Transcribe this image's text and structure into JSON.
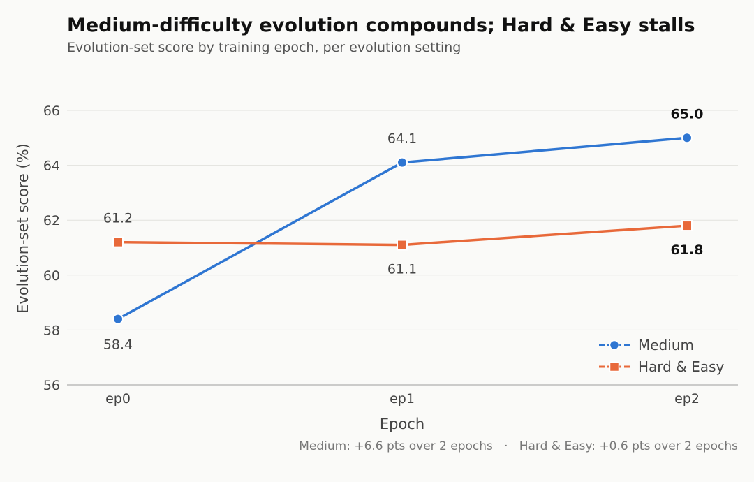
{
  "chart_data": {
    "type": "line",
    "title": "Medium-difficulty evolution compounds; Hard & Easy stalls",
    "subtitle": "Evolution-set score by training epoch, per evolution setting",
    "xlabel": "Epoch",
    "ylabel": "Evolution-set score (%)",
    "categories": [
      "ep0",
      "ep1",
      "ep2"
    ],
    "ylim": [
      56,
      66
    ],
    "yticks": [
      "56",
      "58",
      "60",
      "62",
      "64",
      "66"
    ],
    "grid": true,
    "legend_position": "bottom-right",
    "series": [
      {
        "name": "Medium",
        "color": "#2f76d2",
        "marker": "circle",
        "values": [
          58.4,
          64.1,
          65.0
        ],
        "labels": [
          "58.4",
          "64.1",
          "65.0"
        ]
      },
      {
        "name": "Hard & Easy",
        "color": "#e8693a",
        "marker": "square",
        "values": [
          61.2,
          61.1,
          61.8
        ],
        "labels": [
          "61.2",
          "61.1",
          "61.8"
        ]
      }
    ],
    "footnote": "Medium: +6.6 pts over 2 epochs   ·   Hard & Easy: +0.6 pts over 2 epochs"
  }
}
